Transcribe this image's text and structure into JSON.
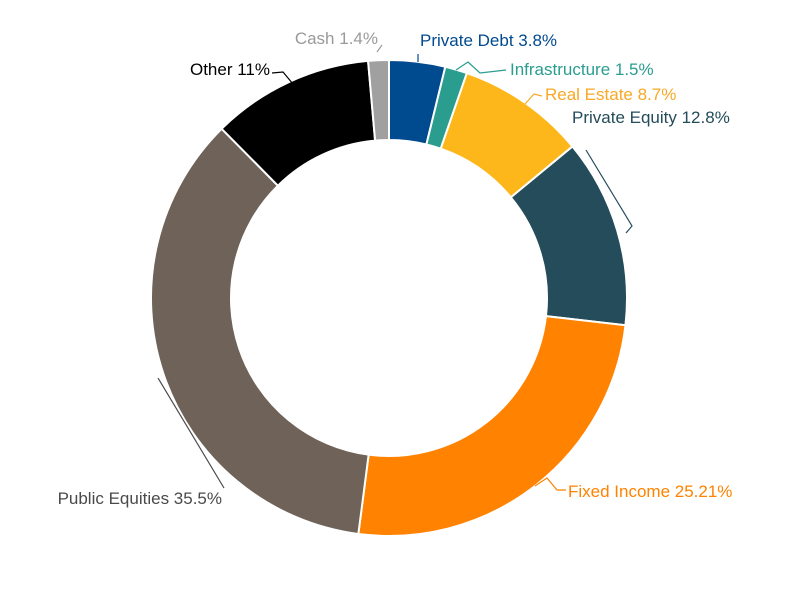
{
  "chart_data": {
    "type": "pie",
    "title": "",
    "subtitle": "",
    "donut": true,
    "start_angle_deg": 0,
    "direction": "clockwise",
    "slices": [
      {
        "name": "Private Debt",
        "value": 3.8,
        "label": "Private Debt 3.8%",
        "color": "#004A8F",
        "label_color": "#004A8F"
      },
      {
        "name": "Infrastructure",
        "value": 1.5,
        "label": "Infrastructure 1.5%",
        "color": "#2A9D8F",
        "label_color": "#2A9D8F"
      },
      {
        "name": "Real Estate",
        "value": 8.7,
        "label": "Real Estate 8.7%",
        "color": "#FDB71B",
        "label_color": "#F9A825"
      },
      {
        "name": "Private Equity",
        "value": 12.8,
        "label": "Private Equity 12.8%",
        "color": "#244C5A",
        "label_color": "#244C5A"
      },
      {
        "name": "Fixed Income",
        "value": 25.21,
        "label": "Fixed Income 25.21%",
        "color": "#FF8200",
        "label_color": "#FF8200"
      },
      {
        "name": "Public Equities",
        "value": 35.5,
        "label": "Public Equities 35.5%",
        "color": "#6E6259",
        "label_color": "#4A4A4A"
      },
      {
        "name": "Other",
        "value": 11,
        "label": "Other 11%",
        "color": "#000000",
        "label_color": "#000000"
      },
      {
        "name": "Cash",
        "value": 1.4,
        "label": "Cash 1.4%",
        "color": "#A0A0A0",
        "label_color": "#9A9A9A"
      }
    ]
  }
}
